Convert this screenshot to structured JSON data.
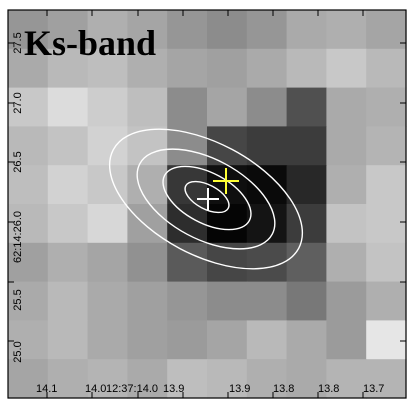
{
  "band_label": "Ks-band",
  "x_tick_labels": [
    "14.1",
    "14.0",
    "12:37:14.0",
    "13.9",
    "13.9",
    "13.8",
    "13.8",
    "13.7"
  ],
  "y_tick_labels": [
    "27.5",
    "27.0",
    "26.5",
    "62:14:26.0",
    "25.5",
    "25.0"
  ],
  "colors": {
    "contour": "#ffffff",
    "yellow_cross": "#ffff33",
    "white_cross": "#ffffff",
    "frame": "#000000"
  },
  "grid": {
    "cols": 10,
    "rows": 10,
    "gray_levels": [
      [
        150,
        160,
        175,
        165,
        150,
        140,
        150,
        170,
        175,
        165
      ],
      [
        170,
        185,
        190,
        175,
        165,
        160,
        170,
        185,
        200,
        185
      ],
      [
        200,
        220,
        205,
        190,
        140,
        165,
        140,
        80,
        170,
        175
      ],
      [
        185,
        195,
        210,
        195,
        140,
        70,
        60,
        60,
        170,
        180
      ],
      [
        190,
        210,
        200,
        175,
        55,
        15,
        10,
        40,
        175,
        200
      ],
      [
        185,
        200,
        215,
        160,
        45,
        5,
        20,
        60,
        195,
        200
      ],
      [
        160,
        175,
        165,
        145,
        90,
        70,
        75,
        95,
        175,
        195
      ],
      [
        170,
        185,
        170,
        160,
        150,
        140,
        140,
        120,
        155,
        175
      ],
      [
        175,
        185,
        170,
        160,
        155,
        165,
        185,
        170,
        155,
        230
      ],
      [
        165,
        175,
        180,
        170,
        190,
        185,
        175,
        170,
        180,
        180
      ]
    ]
  },
  "markers": [
    {
      "name": "yellow-cross",
      "style": "yellow"
    },
    {
      "name": "white-cross",
      "style": "white"
    }
  ]
}
